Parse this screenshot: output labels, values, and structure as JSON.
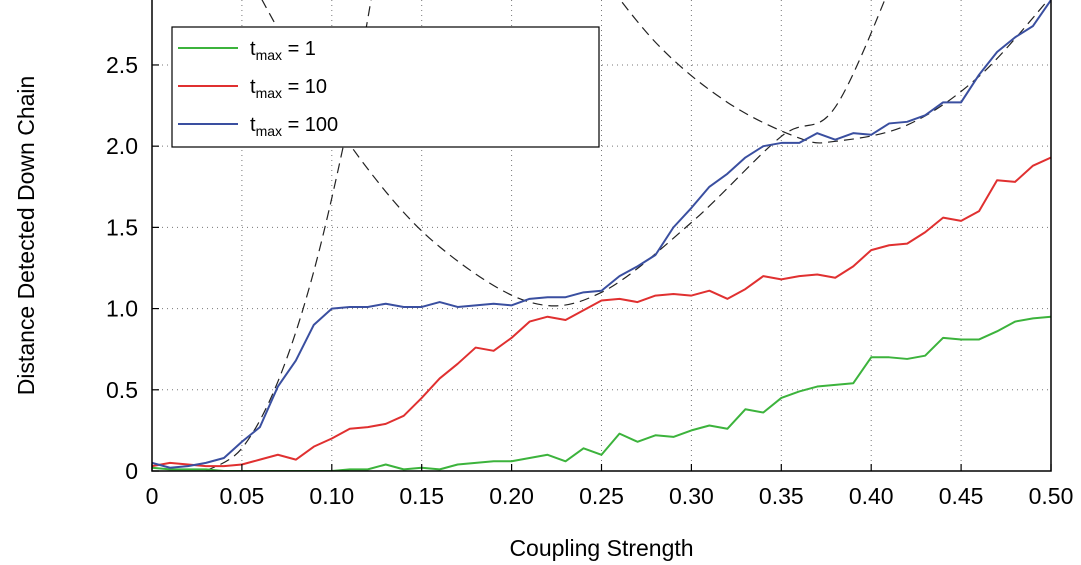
{
  "chart_data": {
    "type": "line",
    "xlabel": "Coupling Strength",
    "ylabel": "Distance Detected Down Chain",
    "xlim": [
      0,
      0.5
    ],
    "ylim": [
      0,
      2.9
    ],
    "grid": true,
    "legend_position": "top-left",
    "x_ticks": [
      0,
      0.05,
      0.1,
      0.15,
      0.2,
      0.25,
      0.3,
      0.35,
      0.4,
      0.45,
      0.5
    ],
    "x_tick_labels": [
      "0",
      "0.05",
      "0.10",
      "0.15",
      "0.20",
      "0.25",
      "0.30",
      "0.35",
      "0.40",
      "0.45",
      "0.50"
    ],
    "y_ticks": [
      0,
      0.5,
      1.0,
      1.5,
      2.0,
      2.5
    ],
    "y_tick_labels": [
      "0",
      "0.5",
      "1.0",
      "1.5",
      "2.0",
      "2.5"
    ],
    "x": [
      0,
      0.01,
      0.02,
      0.03,
      0.04,
      0.05,
      0.06,
      0.07,
      0.08,
      0.09,
      0.1,
      0.11,
      0.12,
      0.13,
      0.14,
      0.15,
      0.16,
      0.17,
      0.18,
      0.19,
      0.2,
      0.21,
      0.22,
      0.23,
      0.24,
      0.25,
      0.26,
      0.27,
      0.28,
      0.29,
      0.3,
      0.31,
      0.32,
      0.33,
      0.34,
      0.35,
      0.36,
      0.37,
      0.38,
      0.39,
      0.4,
      0.41,
      0.42,
      0.43,
      0.44,
      0.45,
      0.46,
      0.47,
      0.48,
      0.49,
      0.5
    ],
    "series": [
      {
        "name_main": "t",
        "name_sub": "max",
        "name_rest": " = 1",
        "color": "#3cb33c",
        "values": [
          0.02,
          0.01,
          0.01,
          0.01,
          0.0,
          0.0,
          0.0,
          0.0,
          0.0,
          0.0,
          0.0,
          0.01,
          0.01,
          0.04,
          0.01,
          0.02,
          0.01,
          0.04,
          0.05,
          0.06,
          0.06,
          0.08,
          0.1,
          0.06,
          0.14,
          0.1,
          0.23,
          0.18,
          0.22,
          0.21,
          0.25,
          0.28,
          0.26,
          0.38,
          0.36,
          0.45,
          0.49,
          0.52,
          0.53,
          0.54,
          0.7,
          0.7,
          0.69,
          0.71,
          0.82,
          0.81,
          0.81,
          0.86,
          0.92,
          0.94,
          0.95
        ]
      },
      {
        "name_main": "t",
        "name_sub": "max",
        "name_rest": " = 10",
        "color": "#e03030",
        "values": [
          0.03,
          0.05,
          0.04,
          0.03,
          0.03,
          0.04,
          0.07,
          0.1,
          0.07,
          0.15,
          0.2,
          0.26,
          0.27,
          0.29,
          0.34,
          0.45,
          0.57,
          0.66,
          0.76,
          0.74,
          0.82,
          0.92,
          0.95,
          0.93,
          0.99,
          1.05,
          1.06,
          1.04,
          1.08,
          1.09,
          1.08,
          1.11,
          1.06,
          1.12,
          1.2,
          1.18,
          1.2,
          1.21,
          1.19,
          1.26,
          1.36,
          1.39,
          1.4,
          1.47,
          1.56,
          1.54,
          1.6,
          1.79,
          1.78,
          1.88,
          1.93
        ]
      },
      {
        "name_main": "t",
        "name_sub": "max",
        "name_rest": " = 100",
        "color": "#3a4fa0",
        "values": [
          0.05,
          0.02,
          0.03,
          0.05,
          0.08,
          0.18,
          0.27,
          0.52,
          0.68,
          0.9,
          1.0,
          1.01,
          1.01,
          1.03,
          1.01,
          1.01,
          1.04,
          1.01,
          1.02,
          1.03,
          1.02,
          1.06,
          1.07,
          1.07,
          1.1,
          1.11,
          1.2,
          1.26,
          1.33,
          1.5,
          1.62,
          1.75,
          1.83,
          1.93,
          2.0,
          2.02,
          2.02,
          2.08,
          2.04,
          2.08,
          2.07,
          2.14,
          2.15,
          2.19,
          2.27,
          2.27,
          2.44,
          2.58,
          2.67,
          2.74,
          2.9
        ]
      }
    ],
    "reference_curves": [
      {
        "style": "dashed",
        "points": [
          [
            0.03,
            0.0
          ],
          [
            0.05,
            0.14
          ],
          [
            0.07,
            0.55
          ],
          [
            0.09,
            1.23
          ],
          [
            0.11,
            2.19
          ],
          [
            0.125,
            3.1
          ]
        ]
      },
      {
        "style": "dashed",
        "points": [
          [
            0.04,
            3.34
          ],
          [
            0.08,
            2.53
          ],
          [
            0.12,
            1.86
          ],
          [
            0.16,
            1.38
          ],
          [
            0.21,
            1.04
          ],
          [
            0.25,
            1.1
          ],
          [
            0.3,
            1.53
          ],
          [
            0.35,
            2.06
          ],
          [
            0.38,
            2.24
          ],
          [
            0.415,
            3.1
          ]
        ]
      },
      {
        "style": "dashed",
        "points": [
          [
            0.24,
            3.2
          ],
          [
            0.28,
            2.64
          ],
          [
            0.32,
            2.27
          ],
          [
            0.36,
            2.05
          ],
          [
            0.38,
            2.03
          ],
          [
            0.42,
            2.13
          ],
          [
            0.46,
            2.43
          ],
          [
            0.5,
            2.92
          ]
        ]
      }
    ]
  }
}
